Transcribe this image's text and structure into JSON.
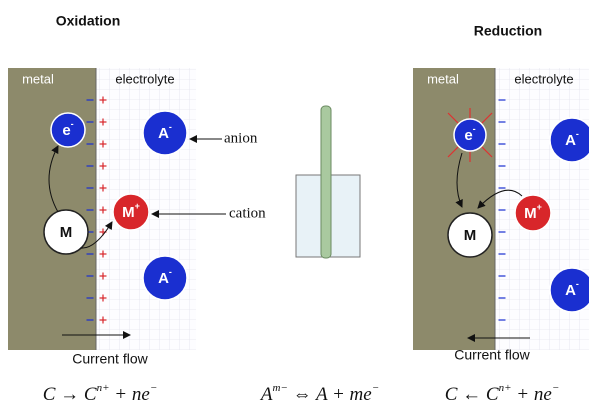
{
  "oxidation": {
    "title": "Oxidation",
    "metal": "metal",
    "electrolyte": "electrolyte",
    "electron": {
      "base": "e",
      "sup": "-"
    },
    "metal_atom": "M",
    "cation": {
      "base": "M",
      "sup": "+"
    },
    "anions": [
      {
        "base": "A",
        "sup": "-"
      },
      {
        "base": "A",
        "sup": "-"
      }
    ],
    "anion_label": "anion",
    "cation_label": "cation",
    "current": "Current flow",
    "equation": [
      {
        "text": "C → C"
      },
      {
        "sup": "n+"
      },
      {
        "text": " + ne"
      },
      {
        "sup": "−"
      }
    ]
  },
  "middle": {
    "equation": [
      {
        "text": "A"
      },
      {
        "sup": "m−"
      },
      {
        "text": " ⇔ A + me"
      },
      {
        "sup": "−"
      }
    ]
  },
  "reduction": {
    "title": "Reduction",
    "metal": "metal",
    "electrolyte": "electrolyte",
    "electron": {
      "base": "e",
      "sup": "-"
    },
    "metal_atom": "M",
    "cation": {
      "base": "M",
      "sup": "+"
    },
    "anions": [
      {
        "base": "A",
        "sup": "-"
      },
      {
        "base": "A",
        "sup": "-"
      }
    ],
    "current": "Current flow",
    "equation": [
      {
        "text": "C ← C"
      },
      {
        "sup": "n+"
      },
      {
        "text": " + ne"
      },
      {
        "sup": "−"
      }
    ]
  }
}
